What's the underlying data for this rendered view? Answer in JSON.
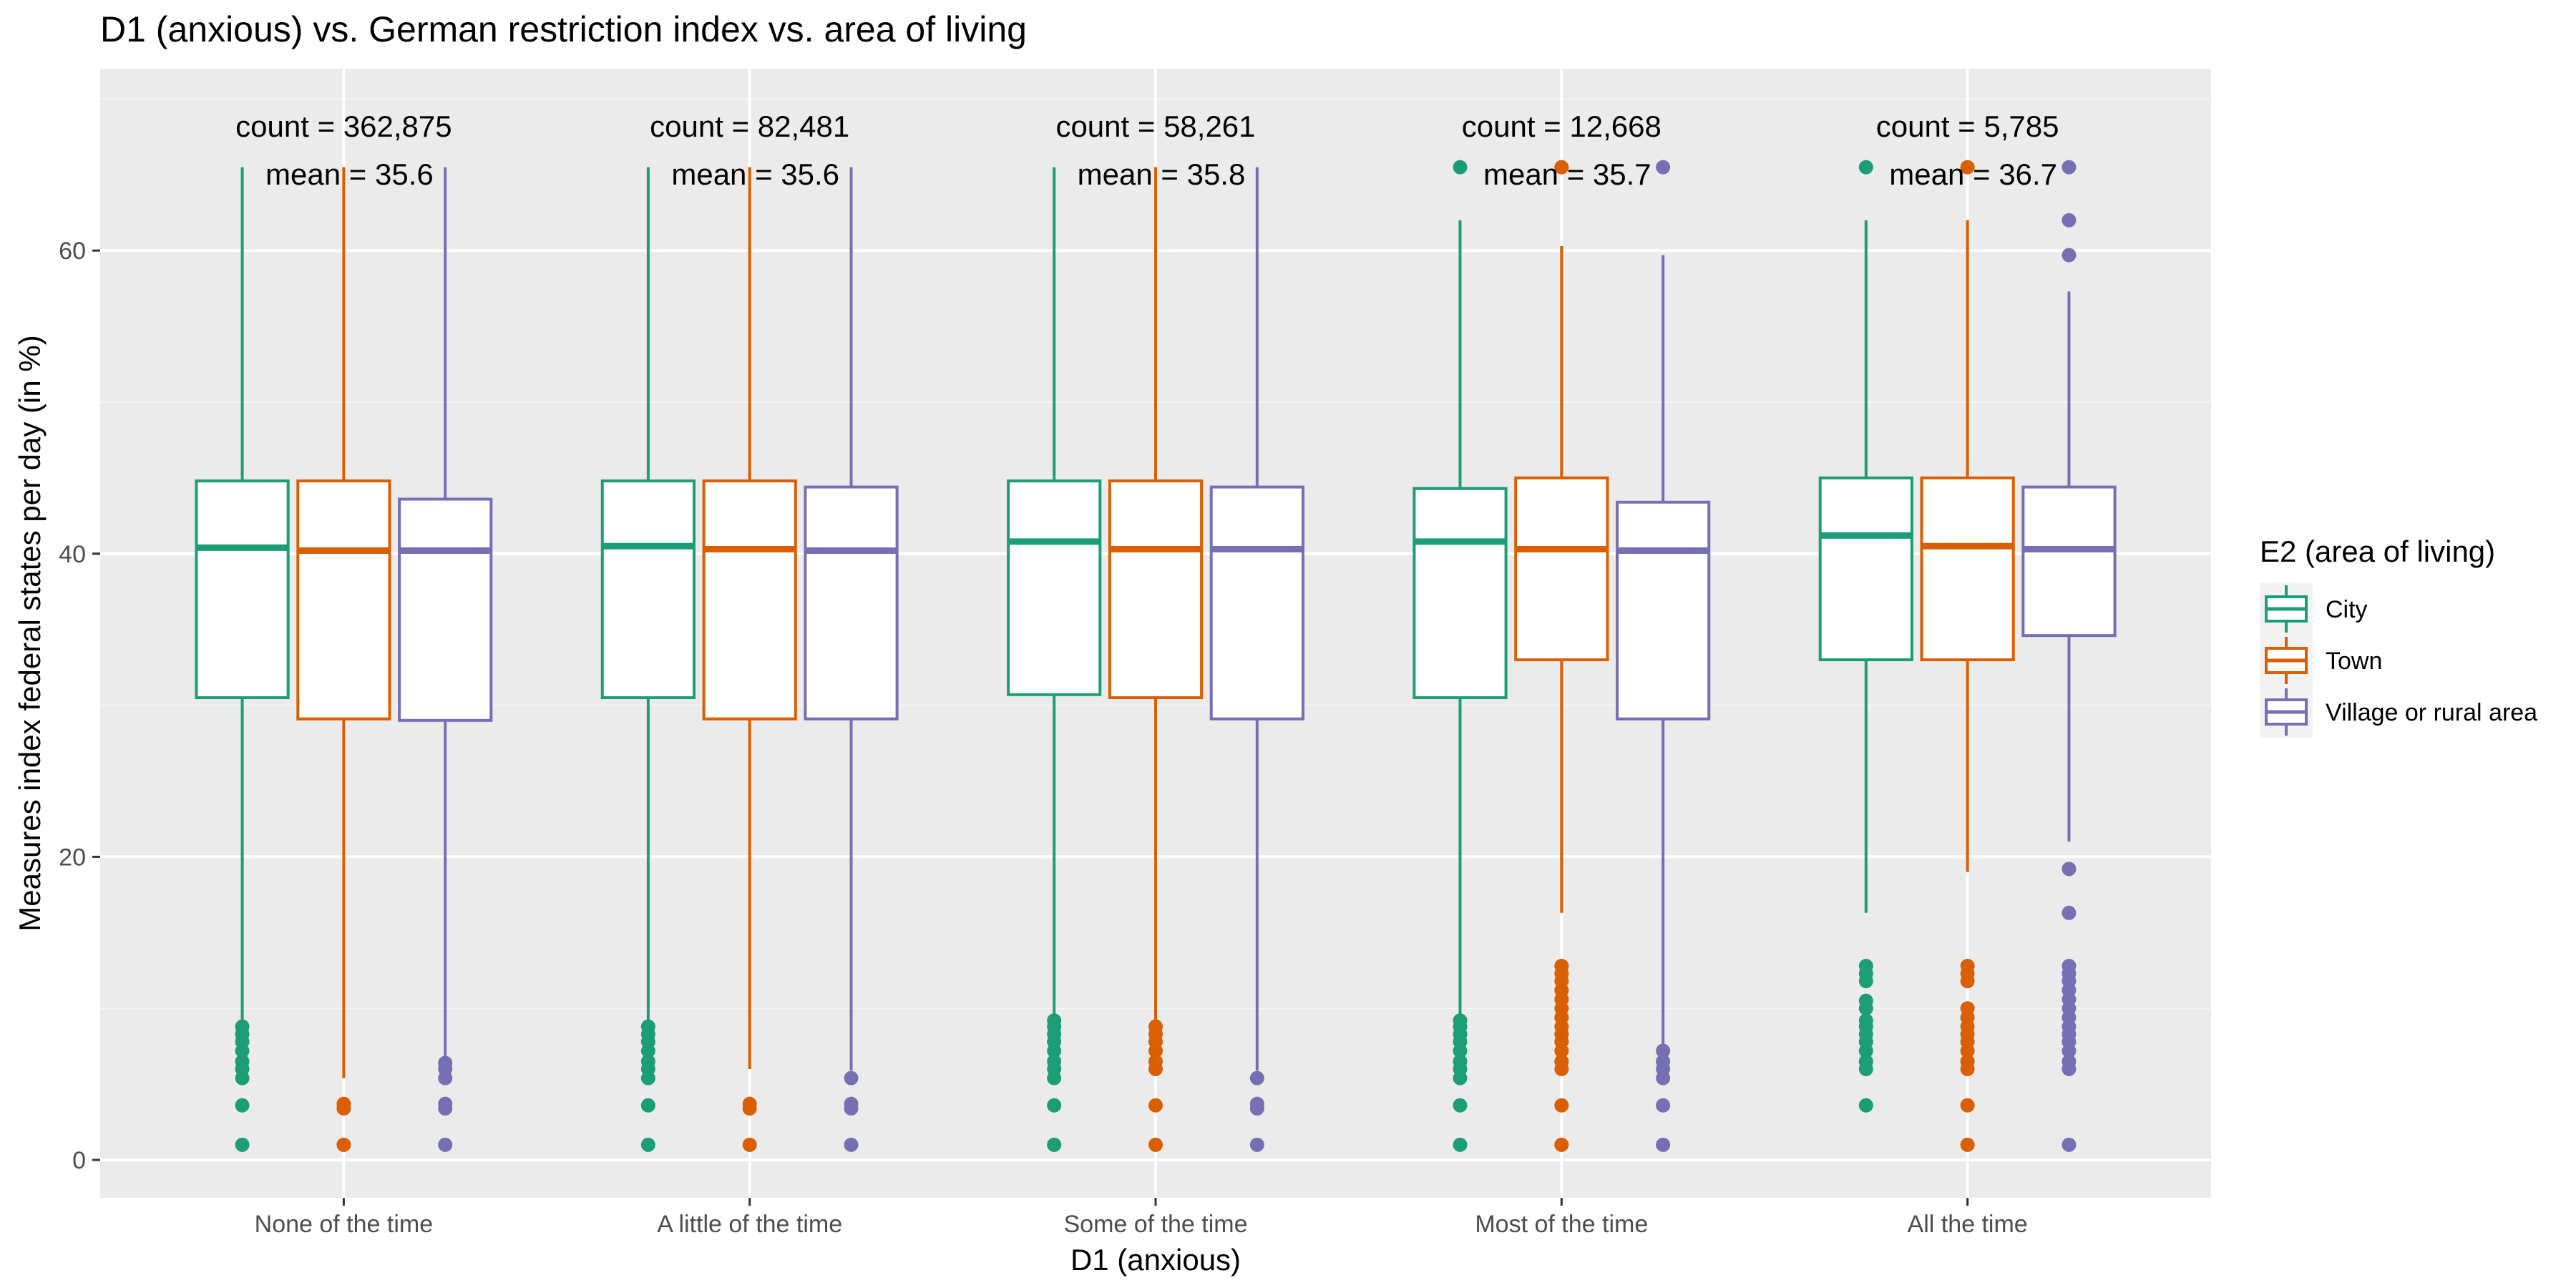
{
  "colors": {
    "panel": "#EBEBEB",
    "grid_major": "#FFFFFF",
    "grid_minor": "#F5F5F5",
    "City": "#1B9E77",
    "Town": "#D95F02",
    "Village or rural area": "#7570B3"
  },
  "chart_data": {
    "type": "box",
    "title": "D1 (anxious) vs. German restriction index vs. area of living",
    "xlabel": "D1 (anxious)",
    "ylabel": "Measures index federal states per day (in %)",
    "ylim": [
      -2.5,
      72
    ],
    "yticks": [
      0,
      20,
      40,
      60
    ],
    "categories": [
      "None of the time",
      "A little of the time",
      "Some of the time",
      "Most of the time",
      "All the time"
    ],
    "legend": {
      "title": "E2 (area of living)",
      "position": "right",
      "entries": [
        "City",
        "Town",
        "Village or rural area"
      ]
    },
    "annotations": [
      {
        "count": "count = 362,875",
        "mean": "mean = 35.6"
      },
      {
        "count": "count = 82,481",
        "mean": "mean = 35.6"
      },
      {
        "count": "count = 58,261",
        "mean": "mean = 35.8"
      },
      {
        "count": "count = 12,668",
        "mean": "mean = 35.7"
      },
      {
        "count": "count = 5,785",
        "mean": "mean = 36.7"
      }
    ],
    "series": [
      {
        "name": "City",
        "boxes": [
          {
            "low": 8.9,
            "q1": 30.5,
            "median": 40.4,
            "q3": 44.8,
            "high": 65.5,
            "outliers": [
              1.0,
              3.6,
              5.4,
              6.0,
              6.5,
              7.2,
              7.8,
              8.3,
              8.8
            ]
          },
          {
            "low": 8.9,
            "q1": 30.5,
            "median": 40.5,
            "q3": 44.8,
            "high": 65.5,
            "outliers": [
              1.0,
              3.6,
              5.4,
              6.0,
              6.5,
              7.2,
              7.8,
              8.3,
              8.8
            ]
          },
          {
            "low": 9.2,
            "q1": 30.7,
            "median": 40.8,
            "q3": 44.8,
            "high": 65.5,
            "outliers": [
              1.0,
              3.6,
              5.4,
              6.0,
              6.5,
              7.2,
              7.8,
              8.3,
              8.8,
              9.2
            ]
          },
          {
            "low": 9.2,
            "q1": 30.5,
            "median": 40.8,
            "q3": 44.3,
            "high": 62.0,
            "outliers": [
              1.0,
              3.6,
              5.4,
              6.0,
              6.5,
              7.2,
              7.8,
              8.3,
              8.8,
              9.2,
              65.5
            ]
          },
          {
            "low": 16.3,
            "q1": 33.0,
            "median": 41.2,
            "q3": 45.0,
            "high": 62.0,
            "outliers": [
              3.6,
              6.0,
              6.5,
              7.2,
              7.8,
              8.3,
              8.8,
              9.2,
              10.0,
              10.5,
              11.8,
              12.3,
              12.8,
              65.5
            ]
          }
        ]
      },
      {
        "name": "Town",
        "boxes": [
          {
            "low": 5.4,
            "q1": 29.1,
            "median": 40.2,
            "q3": 44.8,
            "high": 65.5,
            "outliers": [
              1.0,
              3.4,
              3.7
            ]
          },
          {
            "low": 6.0,
            "q1": 29.1,
            "median": 40.3,
            "q3": 44.8,
            "high": 65.5,
            "outliers": [
              1.0,
              3.4,
              3.7
            ]
          },
          {
            "low": 9.0,
            "q1": 30.5,
            "median": 40.3,
            "q3": 44.8,
            "high": 65.5,
            "outliers": [
              1.0,
              3.6,
              6.0,
              6.5,
              7.2,
              7.8,
              8.3,
              8.8
            ]
          },
          {
            "low": 16.3,
            "q1": 33.0,
            "median": 40.3,
            "q3": 45.0,
            "high": 60.3,
            "outliers": [
              1.0,
              3.6,
              6.0,
              6.5,
              7.2,
              7.8,
              8.3,
              8.8,
              9.4,
              10.0,
              10.6,
              11.2,
              11.8,
              12.3,
              12.8,
              65.5
            ]
          },
          {
            "low": 19.0,
            "q1": 33.0,
            "median": 40.5,
            "q3": 45.0,
            "high": 62.0,
            "outliers": [
              1.0,
              3.6,
              6.0,
              6.5,
              7.2,
              7.8,
              8.3,
              8.8,
              9.4,
              10.0,
              11.8,
              12.3,
              12.8,
              65.5
            ]
          }
        ]
      },
      {
        "name": "Village or rural area",
        "boxes": [
          {
            "low": 6.5,
            "q1": 29.0,
            "median": 40.2,
            "q3": 43.6,
            "high": 65.5,
            "outliers": [
              1.0,
              3.4,
              3.7,
              5.4,
              6.0,
              6.4
            ]
          },
          {
            "low": 5.9,
            "q1": 29.1,
            "median": 40.2,
            "q3": 44.4,
            "high": 65.5,
            "outliers": [
              1.0,
              3.4,
              3.7,
              5.4
            ]
          },
          {
            "low": 5.9,
            "q1": 29.1,
            "median": 40.3,
            "q3": 44.4,
            "high": 65.5,
            "outliers": [
              1.0,
              3.4,
              3.7,
              5.4
            ]
          },
          {
            "low": 7.6,
            "q1": 29.1,
            "median": 40.2,
            "q3": 43.4,
            "high": 59.7,
            "outliers": [
              1.0,
              3.6,
              5.4,
              6.0,
              6.5,
              7.2,
              65.5
            ]
          },
          {
            "low": 21.0,
            "q1": 34.6,
            "median": 40.3,
            "q3": 44.4,
            "high": 57.3,
            "outliers": [
              1.0,
              6.0,
              6.5,
              7.2,
              7.8,
              8.3,
              8.8,
              9.4,
              10.0,
              10.6,
              11.2,
              11.8,
              12.3,
              12.8,
              16.3,
              19.2,
              59.7,
              62.0,
              65.5
            ]
          }
        ]
      }
    ]
  }
}
